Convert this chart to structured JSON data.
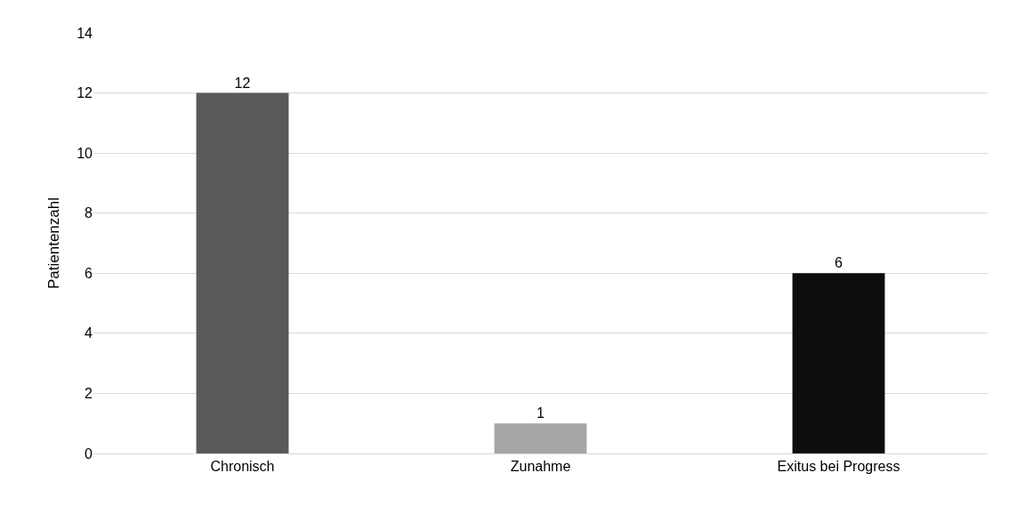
{
  "chart_data": {
    "type": "bar",
    "ylabel": "Patientenzahl",
    "categories": [
      "Chronisch",
      "Zunahme",
      "Exitus bei Progress"
    ],
    "values": [
      12,
      1,
      6
    ],
    "colors": [
      "#595959",
      "#a6a6a6",
      "#0d0d0d"
    ],
    "ylim": [
      0,
      14
    ],
    "yticks": [
      0,
      2,
      4,
      6,
      8,
      10,
      12,
      14
    ],
    "grid": "y",
    "data_labels": true
  }
}
